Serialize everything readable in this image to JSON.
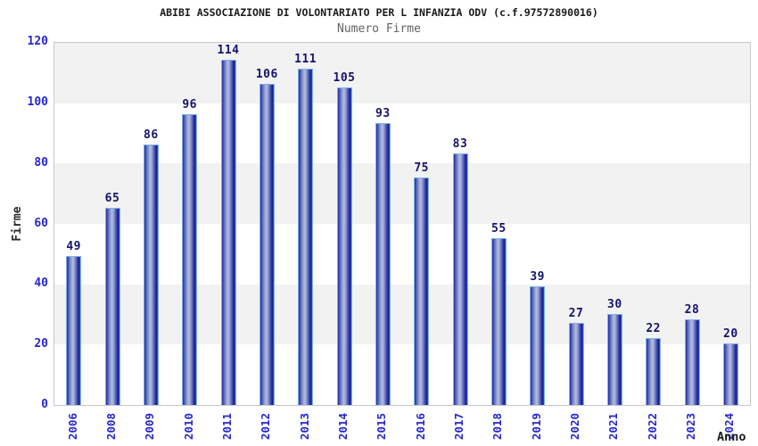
{
  "header": {
    "title": "ABIBI ASSOCIAZIONE DI VOLONTARIATO PER L INFANZIA ODV (c.f.97572890016)",
    "subtitle": "Numero Firme"
  },
  "axes": {
    "y_label": "Firme",
    "x_label": "Anno",
    "y_ticks": [
      0,
      20,
      40,
      60,
      80,
      100,
      120
    ]
  },
  "chart_data": {
    "type": "bar",
    "title": "ABIBI ASSOCIAZIONE DI VOLONTARIATO PER L INFANZIA ODV (c.f.97572890016)",
    "subtitle": "Numero Firme",
    "categories": [
      "2006",
      "2008",
      "2009",
      "2010",
      "2011",
      "2012",
      "2013",
      "2014",
      "2015",
      "2016",
      "2017",
      "2018",
      "2019",
      "2020",
      "2021",
      "2022",
      "2023",
      "2024"
    ],
    "values": [
      49,
      65,
      86,
      96,
      114,
      106,
      111,
      105,
      93,
      75,
      83,
      55,
      39,
      27,
      30,
      22,
      28,
      20
    ],
    "xlabel": "Anno",
    "ylabel": "Firme",
    "ylim": [
      0,
      120
    ],
    "y_tick_step": 20,
    "grid": "alternating-horizontal-bands",
    "legend": "none",
    "value_labels": "above-bars",
    "x_tick_rotation": -90
  },
  "colors": {
    "tick_label_blue": "#2626cf",
    "value_label_navy": "#13136e",
    "title_color": "#1a1a1a",
    "subtitle_color": "#636363",
    "band_gray": "#f2f2f2",
    "band_white": "#ffffff",
    "plot_border": "#c8c8c8",
    "bar_border_lightblue": "#7db2e8",
    "bar_dark_blue": "#242e9e",
    "bar_light_blue": "#b3bce0",
    "bar_edge_bright_blue": "#3549dd",
    "axis_label_color": "#2b2b2b"
  }
}
